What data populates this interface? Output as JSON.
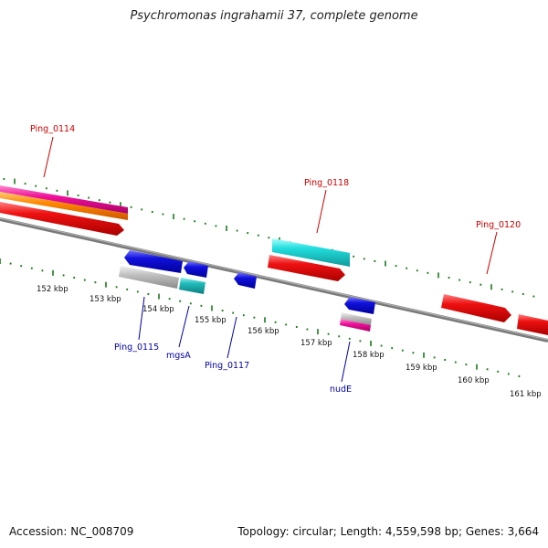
{
  "title": "Psychromonas ingrahamii 37, complete genome",
  "footer": {
    "accession": "Accession: NC_008709",
    "summary": "Topology: circular; Length: 4,559,598 bp; Genes: 3,664"
  },
  "colors": {
    "forward_label": "#cc0000",
    "reverse_label": "#0000aa",
    "tick": "#1a7a1a",
    "backbone": "#808080",
    "red": "#ee1111",
    "blue": "#1111dd",
    "cyan": "#22dddd",
    "teal": "#22bbbb",
    "gray": "#c0c0c0",
    "magenta": "#ee1199",
    "orange": "#ff8800"
  },
  "axis_labels": [
    {
      "text": "152 kbp",
      "kbp": 152
    },
    {
      "text": "153 kbp",
      "kbp": 153
    },
    {
      "text": "154 kbp",
      "kbp": 154
    },
    {
      "text": "155 kbp",
      "kbp": 155
    },
    {
      "text": "156 kbp",
      "kbp": 156
    },
    {
      "text": "157 kbp",
      "kbp": 157
    },
    {
      "text": "158 kbp",
      "kbp": 158
    },
    {
      "text": "159 kbp",
      "kbp": 159
    },
    {
      "text": "160 kbp",
      "kbp": 160
    },
    {
      "text": "161 kbp",
      "kbp": 161
    }
  ],
  "gene_labels": [
    {
      "name": "ping-0114-label",
      "text": "Ping_0114",
      "strand": "forward"
    },
    {
      "name": "ping-0118-label",
      "text": "Ping_0118",
      "strand": "forward"
    },
    {
      "name": "ping-0120-label",
      "text": "Ping_0120",
      "strand": "forward"
    },
    {
      "name": "ping-0115-label",
      "text": "Ping_0115",
      "strand": "reverse"
    },
    {
      "name": "mgsa-label",
      "text": "mgsA",
      "strand": "reverse"
    },
    {
      "name": "ping-0117-label",
      "text": "Ping_0117",
      "strand": "reverse"
    },
    {
      "name": "nude-label",
      "text": "nudE",
      "strand": "reverse"
    }
  ]
}
